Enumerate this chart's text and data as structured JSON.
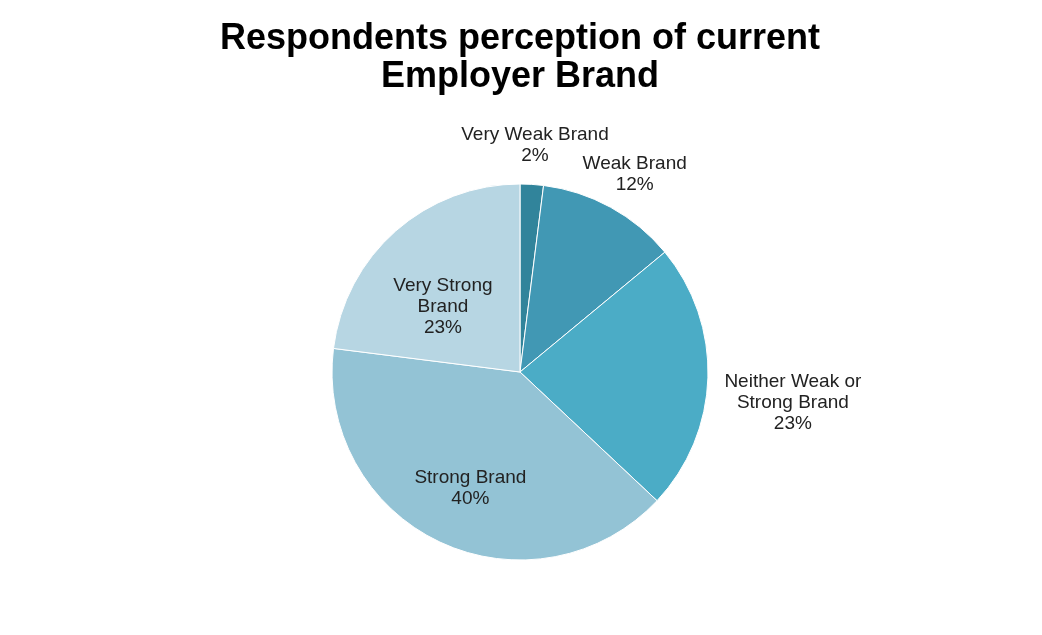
{
  "chart_data": {
    "type": "pie",
    "title": "Respondents perception of  current Employer Brand",
    "categories": [
      "Very Weak Brand",
      "Weak Brand",
      "Neither Weak or Strong Brand",
      "Strong Brand",
      "Very Strong Brand"
    ],
    "values": [
      2,
      12,
      23,
      40,
      23
    ],
    "value_labels": [
      "2%",
      "12%",
      "23%",
      "40%",
      "23%"
    ],
    "colors": [
      "#31849b",
      "#4198b4",
      "#4bacc6",
      "#93c3d5",
      "#b7d6e3"
    ],
    "legend": false
  }
}
